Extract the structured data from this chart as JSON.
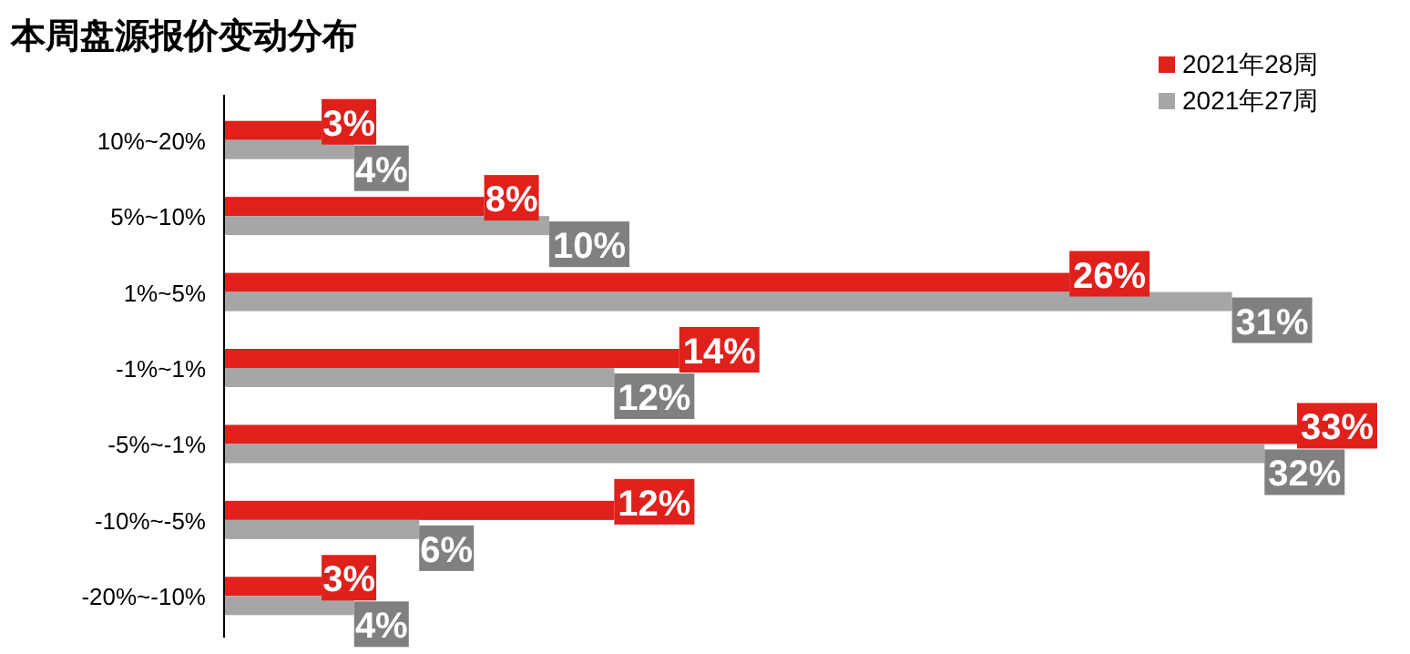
{
  "chart_data": {
    "type": "bar",
    "orientation": "horizontal",
    "title": "本周盘源报价变动分布",
    "categories": [
      "10%~20%",
      "5%~10%",
      "1%~5%",
      "-1%~1%",
      "-5%~-1%",
      "-10%~-5%",
      "-20%~-10%"
    ],
    "series": [
      {
        "name": "2021年28周",
        "color": "#e0201b",
        "values": [
          3,
          8,
          26,
          14,
          33,
          12,
          3
        ],
        "value_labels": [
          "3%",
          "8%",
          "26%",
          "14%",
          "33%",
          "12%",
          "3%"
        ]
      },
      {
        "name": "2021年27周",
        "color": "#a6a6a6",
        "values": [
          4,
          10,
          31,
          12,
          32,
          6,
          4
        ],
        "value_labels": [
          "4%",
          "10%",
          "31%",
          "12%",
          "32%",
          "6%",
          "4%"
        ]
      }
    ],
    "legend": "top right"
  }
}
